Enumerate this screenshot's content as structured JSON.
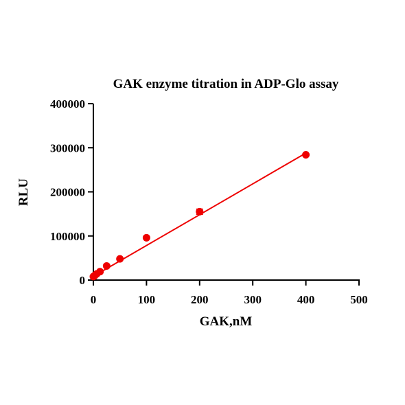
{
  "chart_data": {
    "type": "scatter",
    "title": "GAK enzyme titration in ADP-Glo assay",
    "xlabel": "GAK,nM",
    "ylabel": "RLU",
    "xlim": [
      0,
      500
    ],
    "ylim": [
      0,
      400000
    ],
    "x_ticks": [
      0,
      100,
      200,
      300,
      400,
      500
    ],
    "y_ticks": [
      0,
      100000,
      200000,
      300000,
      400000
    ],
    "x_tick_labels": [
      "0",
      "100",
      "200",
      "300",
      "400",
      "500"
    ],
    "y_tick_labels": [
      "0",
      "100000",
      "200000",
      "300000",
      "400000"
    ],
    "grid": false,
    "series": [
      {
        "x": [
          0,
          1.56,
          3.125,
          6.25,
          12.5,
          25,
          50,
          100,
          200,
          400
        ],
        "y": [
          8000,
          9000,
          11000,
          14000,
          19000,
          32000,
          48000,
          96000,
          155000,
          284000
        ],
        "error": [
          0,
          0,
          0,
          0,
          0,
          0,
          0,
          0,
          6000,
          0
        ],
        "color": "#ee0000"
      }
    ],
    "fit_line": {
      "type": "linear",
      "x": [
        0,
        400
      ],
      "y": [
        8500,
        288000
      ],
      "color": "#ee0000"
    }
  }
}
